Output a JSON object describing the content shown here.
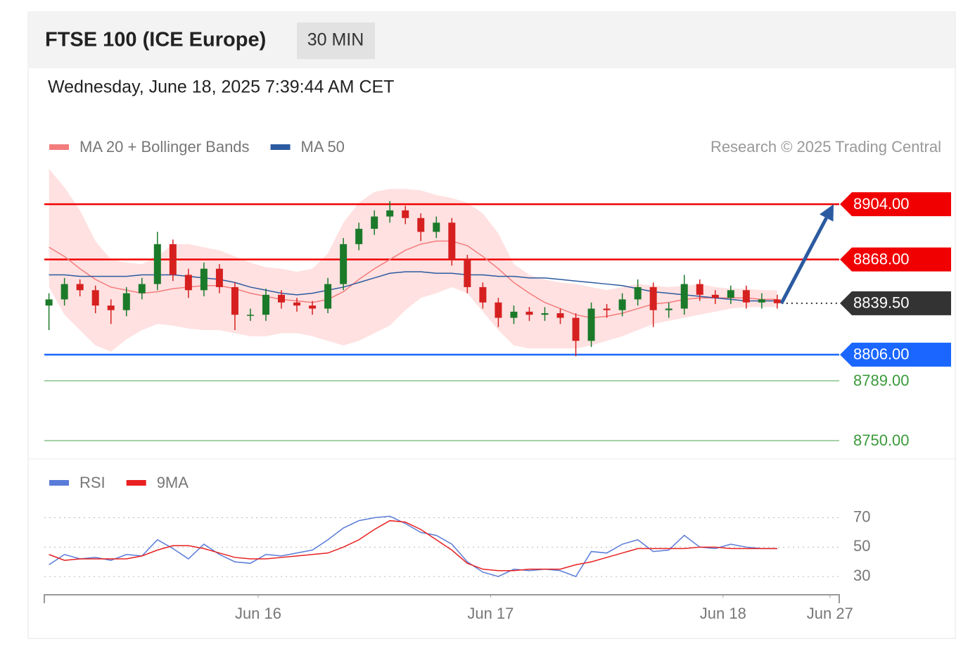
{
  "header": {
    "title": "FTSE 100 (ICE Europe)",
    "interval": "30 MIN",
    "date": "Wednesday, June 18, 2025 7:39:44 AM CET"
  },
  "chart_data": [
    {
      "type": "candlestick",
      "copyright": "Research © 2025 Trading Central",
      "xlim": [
        -0.3,
        51
      ],
      "ylim": [
        8739,
        8927
      ],
      "up_color": "#1b7a2a",
      "down_color": "#d62020",
      "ohlc": {
        "open": [
          8838,
          8842,
          8852,
          8848,
          8838,
          8835,
          8846,
          8852,
          8878,
          8858,
          8848,
          8862,
          8850,
          8832,
          8832,
          8845,
          8840,
          8838,
          8836,
          8852,
          8878,
          8888,
          8896,
          8900,
          8895,
          8886,
          8892,
          8868,
          8850,
          8840,
          8830,
          8834,
          8832,
          8833,
          8830,
          8815,
          8836,
          8835,
          8842,
          8850,
          8835,
          8836,
          8852,
          8845,
          8843,
          8848,
          8840,
          8842
        ],
        "high": [
          8846,
          8856,
          8855,
          8851,
          8842,
          8850,
          8856,
          8886,
          8881,
          8862,
          8866,
          8865,
          8853,
          8836,
          8849,
          8848,
          8843,
          8841,
          8856,
          8882,
          8892,
          8900,
          8906,
          8903,
          8898,
          8896,
          8895,
          8871,
          8853,
          8843,
          8838,
          8837,
          8837,
          8836,
          8833,
          8840,
          8839,
          8846,
          8855,
          8853,
          8840,
          8858,
          8855,
          8848,
          8851,
          8851,
          8846,
          8845
        ],
        "low": [
          8822,
          8838,
          8844,
          8833,
          8826,
          8831,
          8842,
          8848,
          8854,
          8843,
          8844,
          8846,
          8822,
          8828,
          8828,
          8836,
          8834,
          8832,
          8833,
          8848,
          8874,
          8884,
          8892,
          8891,
          8880,
          8882,
          8864,
          8846,
          8836,
          8824,
          8826,
          8828,
          8828,
          8826,
          8805,
          8811,
          8830,
          8831,
          8838,
          8824,
          8830,
          8832,
          8841,
          8839,
          8839,
          8836,
          8836,
          8836
        ],
        "close": [
          8842,
          8852,
          8848,
          8838,
          8835,
          8846,
          8852,
          8878,
          8858,
          8848,
          8862,
          8850,
          8832,
          8832,
          8845,
          8840,
          8838,
          8836,
          8852,
          8878,
          8888,
          8896,
          8900,
          8895,
          8886,
          8892,
          8868,
          8850,
          8840,
          8830,
          8834,
          8832,
          8833,
          8830,
          8815,
          8836,
          8835,
          8842,
          8850,
          8835,
          8836,
          8852,
          8845,
          8843,
          8848,
          8840,
          8842,
          8839.5
        ]
      },
      "lines": [
        {
          "name": "MA 20 + Bollinger Bands",
          "color": "#f47c7c",
          "band_color": "#ffdada",
          "values": [
            8876,
            8870,
            8862,
            8855,
            8850,
            8848,
            8846,
            8847,
            8849,
            8850,
            8851,
            8851,
            8849,
            8846,
            8844,
            8842,
            8841,
            8840,
            8842,
            8847,
            8855,
            8862,
            8868,
            8874,
            8878,
            8880,
            8880,
            8877,
            8870,
            8862,
            8853,
            8846,
            8840,
            8836,
            8832,
            8830,
            8831,
            8833,
            8836,
            8839,
            8840,
            8842,
            8843,
            8843,
            8843,
            8843,
            8842,
            8842
          ],
          "upper": [
            8927,
            8915,
            8900,
            8880,
            8868,
            8866,
            8865,
            8870,
            8878,
            8878,
            8876,
            8874,
            8870,
            8866,
            8863,
            8862,
            8860,
            8862,
            8872,
            8892,
            8905,
            8912,
            8914,
            8914,
            8913,
            8910,
            8908,
            8905,
            8898,
            8885,
            8865,
            8858,
            8855,
            8853,
            8852,
            8850,
            8848,
            8850,
            8852,
            8851,
            8850,
            8851,
            8852,
            8850,
            8849,
            8849,
            8848,
            8848
          ],
          "lower": [
            8850,
            8832,
            8822,
            8812,
            8808,
            8816,
            8822,
            8826,
            8825,
            8823,
            8822,
            8822,
            8820,
            8818,
            8818,
            8820,
            8820,
            8818,
            8815,
            8812,
            8815,
            8820,
            8825,
            8835,
            8843,
            8846,
            8850,
            8846,
            8834,
            8822,
            8812,
            8810,
            8810,
            8810,
            8810,
            8812,
            8815,
            8818,
            8822,
            8826,
            8828,
            8830,
            8832,
            8834,
            8836,
            8837,
            8837,
            8837
          ]
        },
        {
          "name": "MA 50",
          "color": "#2b5aa0",
          "values": [
            8858,
            8858,
            8857,
            8857,
            8857,
            8857,
            8858,
            8858,
            8858,
            8857,
            8856,
            8855,
            8853,
            8850,
            8848,
            8846,
            8845,
            8846,
            8848,
            8850,
            8853,
            8856,
            8859,
            8860,
            8860,
            8859,
            8859,
            8858,
            8858,
            8857,
            8857,
            8856,
            8856,
            8855,
            8854,
            8853,
            8852,
            8851,
            8849,
            8847,
            8846,
            8845,
            8844,
            8843,
            8842,
            8841,
            8841,
            8841
          ]
        }
      ],
      "levels": [
        {
          "value": 8904,
          "label": "8904.00",
          "color": "#f00000",
          "tag": true,
          "style": "solid"
        },
        {
          "value": 8868,
          "label": "8868.00",
          "color": "#f00000",
          "tag": true,
          "style": "solid"
        },
        {
          "value": 8839.5,
          "label": "8839.50",
          "color": "#333333",
          "tag": true,
          "style": "dotted"
        },
        {
          "value": 8806,
          "label": "8806.00",
          "color": "#1a66ff",
          "tag": true,
          "style": "solid"
        },
        {
          "value": 8789,
          "label": "8789.00",
          "color": "#3a9a3a",
          "tag": false,
          "style": "solid"
        },
        {
          "value": 8750,
          "label": "8750.00",
          "color": "#3a9a3a",
          "tag": false,
          "style": "solid"
        }
      ]
    },
    {
      "type": "line",
      "xlim": [
        -0.3,
        51
      ],
      "ylim": [
        20,
        87
      ],
      "xticks": [
        {
          "value": 13.5,
          "label": "Jun 16"
        },
        {
          "value": 28.5,
          "label": "Jun 17"
        },
        {
          "value": 43.5,
          "label": "Jun 18"
        },
        {
          "value": 50.4,
          "label": "Jun 27"
        }
      ],
      "yticks": [
        30,
        50,
        70
      ],
      "series": [
        {
          "name": "RSI",
          "color": "#5a7bd8",
          "values": [
            38,
            45,
            42,
            43,
            41,
            45,
            44,
            55,
            49,
            42,
            52,
            45,
            40,
            39,
            45,
            44,
            46,
            48,
            55,
            63,
            68,
            70,
            71,
            66,
            60,
            58,
            52,
            40,
            33,
            30,
            35,
            34,
            35,
            34,
            30,
            47,
            46,
            52,
            55,
            47,
            48,
            58,
            50,
            49,
            52,
            50,
            49,
            49
          ]
        },
        {
          "name": "9MA",
          "color": "#e82020",
          "values": [
            45,
            41,
            42,
            42,
            42,
            42,
            44,
            48,
            51,
            51,
            49,
            46,
            43,
            42,
            42,
            43,
            44,
            45,
            46,
            50,
            55,
            62,
            68,
            67,
            62,
            55,
            48,
            39,
            35,
            34,
            34,
            35,
            35,
            35,
            38,
            40,
            43,
            46,
            49,
            49,
            49,
            49,
            50,
            50,
            49,
            49,
            49,
            49
          ]
        }
      ]
    }
  ]
}
